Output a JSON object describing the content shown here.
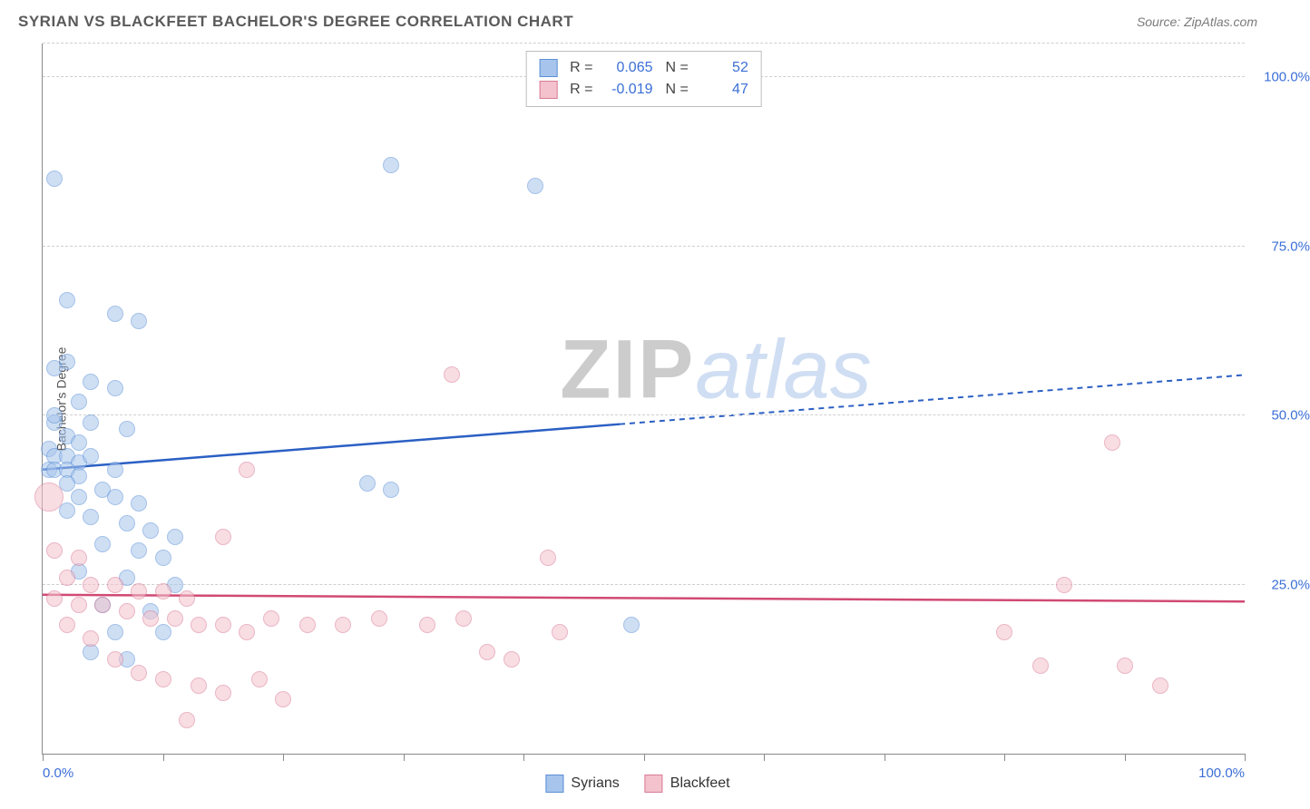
{
  "title": "SYRIAN VS BLACKFEET BACHELOR'S DEGREE CORRELATION CHART",
  "source": "Source: ZipAtlas.com",
  "ylabel": "Bachelor's Degree",
  "watermark": {
    "zip": "ZIP",
    "atlas": "atlas"
  },
  "chart": {
    "type": "scatter",
    "background_color": "#ffffff",
    "grid_color": "#cfcfcf",
    "axis_color": "#8a8a8a",
    "label_color": "#3b6fd6",
    "xlim": [
      0,
      100
    ],
    "ylim": [
      0,
      105
    ],
    "y_gridlines": [
      25,
      50,
      75,
      100,
      105
    ],
    "y_tick_labels": [
      {
        "value": 25,
        "label": "25.0%"
      },
      {
        "value": 50,
        "label": "50.0%"
      },
      {
        "value": 75,
        "label": "75.0%"
      },
      {
        "value": 100,
        "label": "100.0%"
      }
    ],
    "x_ticks": [
      0,
      10,
      20,
      30,
      40,
      50,
      60,
      70,
      80,
      90,
      100
    ],
    "x_tick_labels": [
      {
        "value": 0,
        "label": "0.0%"
      },
      {
        "value": 100,
        "label": "100.0%"
      }
    ],
    "point_radius": 9,
    "point_opacity": 0.55,
    "point_stroke_width": 1.2,
    "series": [
      {
        "name": "Syrians",
        "color_fill": "#a7c5ec",
        "color_stroke": "#5b8fd6",
        "color_line": "#2b5fc4",
        "R": "0.065",
        "N": "52",
        "regression": {
          "x1": 0,
          "y1": 42,
          "x2": 100,
          "y2": 56,
          "solid_until_x": 48
        },
        "points": [
          {
            "x": 1,
            "y": 85
          },
          {
            "x": 29,
            "y": 87
          },
          {
            "x": 41,
            "y": 84
          },
          {
            "x": 2,
            "y": 67
          },
          {
            "x": 6,
            "y": 65
          },
          {
            "x": 8,
            "y": 64
          },
          {
            "x": 2,
            "y": 58
          },
          {
            "x": 1,
            "y": 57
          },
          {
            "x": 4,
            "y": 55
          },
          {
            "x": 6,
            "y": 54
          },
          {
            "x": 3,
            "y": 52
          },
          {
            "x": 1,
            "y": 49
          },
          {
            "x": 4,
            "y": 49
          },
          {
            "x": 7,
            "y": 48
          },
          {
            "x": 2,
            "y": 47
          },
          {
            "x": 3,
            "y": 46
          },
          {
            "x": 0.5,
            "y": 45
          },
          {
            "x": 1,
            "y": 44
          },
          {
            "x": 2,
            "y": 44
          },
          {
            "x": 3,
            "y": 43
          },
          {
            "x": 0.5,
            "y": 42
          },
          {
            "x": 1,
            "y": 42
          },
          {
            "x": 2,
            "y": 42
          },
          {
            "x": 3,
            "y": 41
          },
          {
            "x": 5,
            "y": 39
          },
          {
            "x": 6,
            "y": 38
          },
          {
            "x": 8,
            "y": 37
          },
          {
            "x": 2,
            "y": 36
          },
          {
            "x": 4,
            "y": 35
          },
          {
            "x": 7,
            "y": 34
          },
          {
            "x": 9,
            "y": 33
          },
          {
            "x": 11,
            "y": 32
          },
          {
            "x": 5,
            "y": 31
          },
          {
            "x": 8,
            "y": 30
          },
          {
            "x": 10,
            "y": 29
          },
          {
            "x": 27,
            "y": 40
          },
          {
            "x": 29,
            "y": 39
          },
          {
            "x": 3,
            "y": 27
          },
          {
            "x": 7,
            "y": 26
          },
          {
            "x": 11,
            "y": 25
          },
          {
            "x": 5,
            "y": 22
          },
          {
            "x": 9,
            "y": 21
          },
          {
            "x": 6,
            "y": 18
          },
          {
            "x": 10,
            "y": 18
          },
          {
            "x": 4,
            "y": 15
          },
          {
            "x": 7,
            "y": 14
          },
          {
            "x": 49,
            "y": 19
          },
          {
            "x": 2,
            "y": 40
          },
          {
            "x": 4,
            "y": 44
          },
          {
            "x": 1,
            "y": 50
          },
          {
            "x": 3,
            "y": 38
          },
          {
            "x": 6,
            "y": 42
          }
        ]
      },
      {
        "name": "Blackfeet",
        "color_fill": "#f3c2cd",
        "color_stroke": "#d97a95",
        "color_line": "#d14a74",
        "R": "-0.019",
        "N": "47",
        "regression": {
          "x1": 0,
          "y1": 23.5,
          "x2": 100,
          "y2": 22.5,
          "solid_until_x": 100
        },
        "points": [
          {
            "x": 0.5,
            "y": 38,
            "r": 16
          },
          {
            "x": 34,
            "y": 56
          },
          {
            "x": 17,
            "y": 42
          },
          {
            "x": 1,
            "y": 30
          },
          {
            "x": 3,
            "y": 29
          },
          {
            "x": 15,
            "y": 32
          },
          {
            "x": 42,
            "y": 29
          },
          {
            "x": 2,
            "y": 26
          },
          {
            "x": 4,
            "y": 25
          },
          {
            "x": 6,
            "y": 25
          },
          {
            "x": 8,
            "y": 24
          },
          {
            "x": 10,
            "y": 24
          },
          {
            "x": 12,
            "y": 23
          },
          {
            "x": 1,
            "y": 23
          },
          {
            "x": 3,
            "y": 22
          },
          {
            "x": 5,
            "y": 22
          },
          {
            "x": 7,
            "y": 21
          },
          {
            "x": 9,
            "y": 20
          },
          {
            "x": 11,
            "y": 20
          },
          {
            "x": 13,
            "y": 19
          },
          {
            "x": 15,
            "y": 19
          },
          {
            "x": 17,
            "y": 18
          },
          {
            "x": 19,
            "y": 20
          },
          {
            "x": 22,
            "y": 19
          },
          {
            "x": 25,
            "y": 19
          },
          {
            "x": 28,
            "y": 20
          },
          {
            "x": 32,
            "y": 19
          },
          {
            "x": 35,
            "y": 20
          },
          {
            "x": 37,
            "y": 15
          },
          {
            "x": 39,
            "y": 14
          },
          {
            "x": 43,
            "y": 18
          },
          {
            "x": 6,
            "y": 14
          },
          {
            "x": 8,
            "y": 12
          },
          {
            "x": 10,
            "y": 11
          },
          {
            "x": 13,
            "y": 10
          },
          {
            "x": 15,
            "y": 9
          },
          {
            "x": 18,
            "y": 11
          },
          {
            "x": 20,
            "y": 8
          },
          {
            "x": 12,
            "y": 5
          },
          {
            "x": 80,
            "y": 18
          },
          {
            "x": 83,
            "y": 13
          },
          {
            "x": 85,
            "y": 25
          },
          {
            "x": 89,
            "y": 46
          },
          {
            "x": 90,
            "y": 13
          },
          {
            "x": 93,
            "y": 10
          },
          {
            "x": 2,
            "y": 19
          },
          {
            "x": 4,
            "y": 17
          }
        ]
      }
    ]
  },
  "legend_top": {
    "r_label": "R  =",
    "n_label": "N  ="
  },
  "legend_bottom": {
    "series1": "Syrians",
    "series2": "Blackfeet"
  }
}
